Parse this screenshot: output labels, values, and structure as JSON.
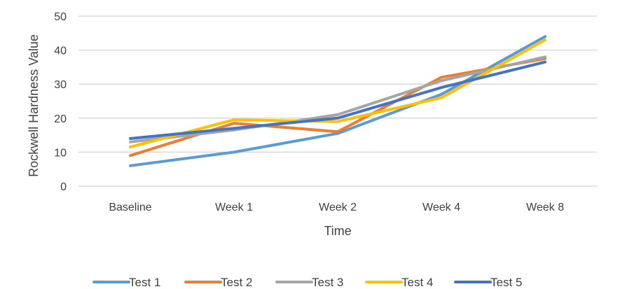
{
  "chart_data": {
    "type": "line",
    "title": "",
    "xlabel": "Time",
    "ylabel": "Rockwell Hardness Value",
    "categories": [
      "Baseline",
      "Week 1",
      "Week 2",
      "Week 4",
      "Week 8"
    ],
    "ylim": [
      0,
      50
    ],
    "yticks": [
      0,
      10,
      20,
      30,
      40,
      50
    ],
    "grid": true,
    "legend_position": "bottom",
    "series": [
      {
        "name": "Test 1",
        "color": "#5b9bd5",
        "values": [
          6,
          10,
          15.5,
          27,
          44
        ]
      },
      {
        "name": "Test 2",
        "color": "#ed7d31",
        "values": [
          9,
          18.5,
          16,
          32,
          37.5
        ]
      },
      {
        "name": "Test 3",
        "color": "#a5a5a5",
        "values": [
          13,
          16.5,
          21,
          31,
          38
        ]
      },
      {
        "name": "Test 4",
        "color": "#ffc000",
        "values": [
          11.5,
          19.5,
          19,
          26,
          43
        ]
      },
      {
        "name": "Test 5",
        "color": "#4472c4",
        "values": [
          14,
          17,
          20,
          29,
          36.5
        ]
      }
    ]
  }
}
